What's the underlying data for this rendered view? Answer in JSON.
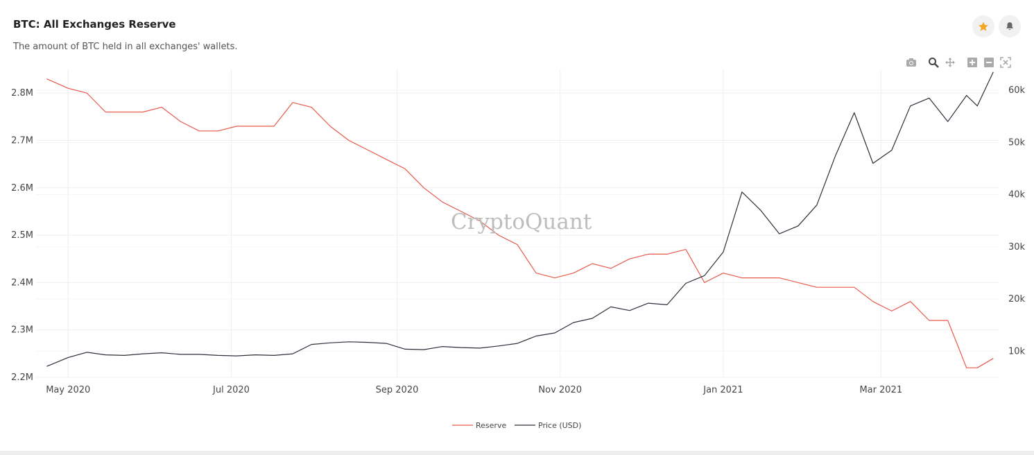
{
  "header": {
    "title": "BTC: All Exchanges Reserve",
    "subtitle": "The amount of BTC held in all exchanges' wallets."
  },
  "icons": {
    "favorite": "star-icon",
    "alert": "bell-icon",
    "toolbar": [
      "camera-icon",
      "zoom-icon",
      "pan-icon",
      "zoom-in-icon",
      "zoom-out-icon",
      "autoscale-icon"
    ]
  },
  "colors": {
    "reserve": "#e8594a",
    "price": "#2a2f3a",
    "star": "#f5a623",
    "icon": "#9a9a9a"
  },
  "watermark": "CryptoQuant",
  "chart_data": {
    "type": "line",
    "x_ticks": [
      "May 2020",
      "Jul 2020",
      "Sep 2020",
      "Nov 2020",
      "Jan 2021",
      "Mar 2021"
    ],
    "y_left_ticks": [
      "2.2M",
      "2.3M",
      "2.4M",
      "2.5M",
      "2.6M",
      "2.7M",
      "2.8M"
    ],
    "y_right_ticks": [
      "10k",
      "20k",
      "30k",
      "40k",
      "50k",
      "60k"
    ],
    "ylim_left": [
      2.2,
      2.85
    ],
    "ylim_right": [
      5000,
      64000
    ],
    "legend_position": "bottom-center",
    "grid": true,
    "series": [
      {
        "name": "Reserve",
        "axis": "left",
        "x": [
          "2020-04-23",
          "2020-05-01",
          "2020-05-08",
          "2020-05-15",
          "2020-05-22",
          "2020-05-29",
          "2020-06-05",
          "2020-06-12",
          "2020-06-19",
          "2020-06-26",
          "2020-07-03",
          "2020-07-10",
          "2020-07-17",
          "2020-07-24",
          "2020-07-31",
          "2020-08-07",
          "2020-08-14",
          "2020-08-21",
          "2020-08-28",
          "2020-09-04",
          "2020-09-11",
          "2020-09-18",
          "2020-09-25",
          "2020-10-02",
          "2020-10-09",
          "2020-10-16",
          "2020-10-23",
          "2020-10-30",
          "2020-11-06",
          "2020-11-13",
          "2020-11-20",
          "2020-11-27",
          "2020-12-04",
          "2020-12-11",
          "2020-12-18",
          "2020-12-25",
          "2021-01-01",
          "2021-01-08",
          "2021-01-15",
          "2021-01-22",
          "2021-01-29",
          "2021-02-05",
          "2021-02-12",
          "2021-02-19",
          "2021-02-26",
          "2021-03-05",
          "2021-03-12",
          "2021-03-19",
          "2021-03-26",
          "2021-04-02",
          "2021-04-06",
          "2021-04-12"
        ],
        "values": [
          2.83,
          2.81,
          2.8,
          2.76,
          2.76,
          2.76,
          2.77,
          2.74,
          2.72,
          2.72,
          2.73,
          2.73,
          2.73,
          2.78,
          2.77,
          2.73,
          2.7,
          2.68,
          2.66,
          2.64,
          2.6,
          2.57,
          2.55,
          2.53,
          2.5,
          2.48,
          2.42,
          2.41,
          2.42,
          2.44,
          2.43,
          2.45,
          2.46,
          2.46,
          2.47,
          2.4,
          2.42,
          2.41,
          2.41,
          2.41,
          2.4,
          2.39,
          2.39,
          2.39,
          2.36,
          2.34,
          2.36,
          2.32,
          2.32,
          2.22,
          2.22,
          2.24
        ]
      },
      {
        "name": "Price (USD)",
        "axis": "right",
        "x": [
          "2020-04-23",
          "2020-05-01",
          "2020-05-08",
          "2020-05-15",
          "2020-05-22",
          "2020-05-29",
          "2020-06-05",
          "2020-06-12",
          "2020-06-19",
          "2020-06-26",
          "2020-07-03",
          "2020-07-10",
          "2020-07-17",
          "2020-07-24",
          "2020-07-31",
          "2020-08-07",
          "2020-08-14",
          "2020-08-21",
          "2020-08-28",
          "2020-09-04",
          "2020-09-11",
          "2020-09-18",
          "2020-09-25",
          "2020-10-02",
          "2020-10-09",
          "2020-10-16",
          "2020-10-23",
          "2020-10-30",
          "2020-11-06",
          "2020-11-13",
          "2020-11-20",
          "2020-11-27",
          "2020-12-04",
          "2020-12-11",
          "2020-12-18",
          "2020-12-25",
          "2021-01-01",
          "2021-01-08",
          "2021-01-15",
          "2021-01-22",
          "2021-01-29",
          "2021-02-05",
          "2021-02-12",
          "2021-02-19",
          "2021-02-26",
          "2021-03-05",
          "2021-03-12",
          "2021-03-19",
          "2021-03-26",
          "2021-04-02",
          "2021-04-06",
          "2021-04-12"
        ],
        "values": [
          7100,
          8800,
          9800,
          9300,
          9200,
          9500,
          9700,
          9400,
          9400,
          9200,
          9100,
          9300,
          9200,
          9500,
          11300,
          11600,
          11800,
          11700,
          11500,
          10400,
          10300,
          10900,
          10700,
          10600,
          11000,
          11500,
          12900,
          13500,
          15500,
          16300,
          18500,
          17800,
          19200,
          18900,
          23000,
          24500,
          29000,
          40500,
          37000,
          32500,
          34000,
          38000,
          47500,
          55700,
          46000,
          48500,
          57000,
          58500,
          54000,
          59000,
          57000,
          63500
        ]
      }
    ]
  }
}
